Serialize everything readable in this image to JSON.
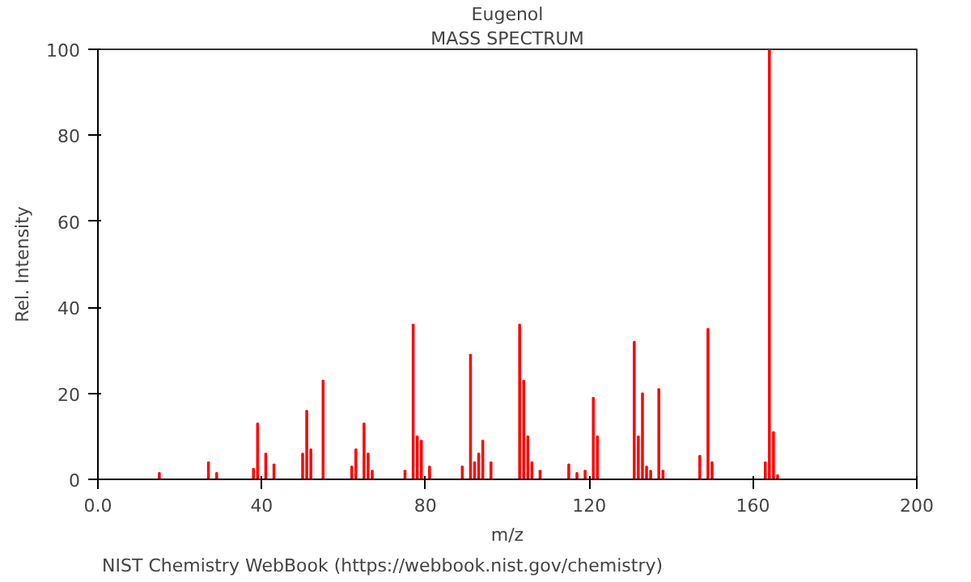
{
  "chart_data": {
    "type": "bar",
    "title": "Eugenol",
    "subtitle": "MASS SPECTRUM",
    "xlabel": "m/z",
    "ylabel": "Rel. Intensity",
    "x": [
      15,
      27,
      29,
      38,
      39,
      41,
      43,
      50,
      51,
      52,
      55,
      62,
      63,
      65,
      66,
      67,
      75,
      77,
      78,
      79,
      81,
      89,
      91,
      92,
      93,
      94,
      96,
      103,
      104,
      105,
      106,
      108,
      115,
      117,
      119,
      121,
      122,
      131,
      132,
      133,
      134,
      135,
      137,
      138,
      147,
      149,
      150,
      163,
      164,
      165,
      166
    ],
    "values": [
      1.5,
      4,
      1.5,
      2.5,
      13,
      6,
      3.5,
      6,
      16,
      7,
      23,
      3,
      7,
      13,
      6,
      2,
      2,
      36,
      10,
      9,
      3,
      3,
      29,
      4,
      6,
      9,
      4,
      36,
      23,
      10,
      4,
      2,
      3.5,
      1.5,
      2,
      19,
      10,
      32,
      10,
      20,
      3,
      2,
      21,
      2,
      5.5,
      35,
      4,
      4,
      100,
      11,
      1
    ],
    "color": "#ff0000",
    "xlim": [
      0,
      200
    ],
    "xticks": [
      {
        "value": 0,
        "label": "0.0"
      },
      40,
      80,
      120,
      160,
      200
    ],
    "ylim": [
      0,
      100
    ],
    "yticks": [
      0,
      20,
      40,
      60,
      80,
      100
    ],
    "grid": false,
    "annotations": [
      "NIST Chemistry WebBook (https://webbook.nist.gov/chemistry)"
    ]
  }
}
